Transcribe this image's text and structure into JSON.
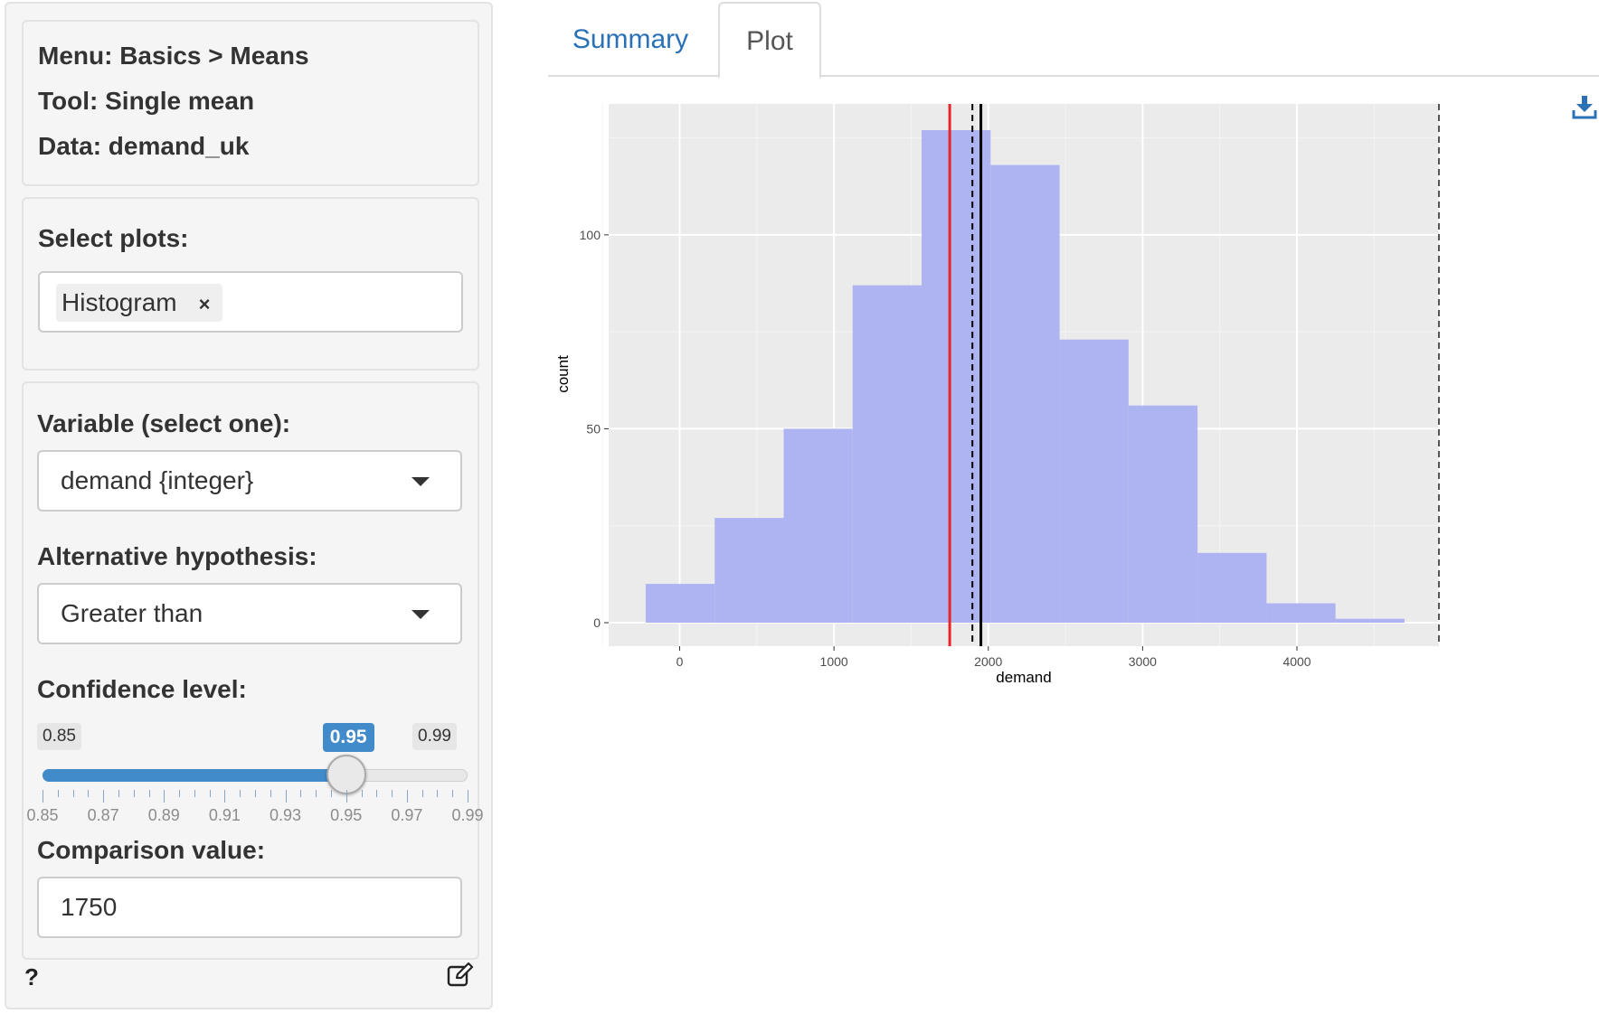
{
  "sidebar": {
    "info": {
      "menu": "Menu: Basics > Means",
      "tool": "Tool: Single mean",
      "data": "Data: demand_uk"
    },
    "plots": {
      "label": "Select plots:",
      "selected": "Histogram",
      "remove_glyph": "×"
    },
    "variable": {
      "label": "Variable (select one):",
      "value": "demand {integer}"
    },
    "alternative": {
      "label": "Alternative hypothesis:",
      "value": "Greater than"
    },
    "confidence": {
      "label": "Confidence level:",
      "min_label": "0.85",
      "max_label": "0.99",
      "value_label": "0.95",
      "min": 0.85,
      "max": 0.99,
      "value": 0.95,
      "grid_labels": [
        "0.85",
        "0.87",
        "0.89",
        "0.91",
        "0.93",
        "0.95",
        "0.97",
        "0.99"
      ]
    },
    "comparison": {
      "label": "Comparison value:",
      "value": "1750"
    },
    "footer": {
      "help_glyph": "?",
      "report_icon": "edit-icon"
    }
  },
  "tabs": [
    {
      "label": "Summary",
      "active": false
    },
    {
      "label": "Plot",
      "active": true
    }
  ],
  "download_icon": "download-icon",
  "chart_data": {
    "type": "bar",
    "xlabel": "demand",
    "ylabel": "count",
    "xlim": [
      -460,
      4920
    ],
    "ylim": [
      0,
      127
    ],
    "xticks": [
      0,
      1000,
      2000,
      3000,
      4000
    ],
    "yticks": [
      0,
      50,
      100
    ],
    "grid": true,
    "bin_width": 447,
    "bins": [
      {
        "x0": -220,
        "x1": 227,
        "count": 10
      },
      {
        "x0": 227,
        "x1": 674,
        "count": 27
      },
      {
        "x0": 674,
        "x1": 1121,
        "count": 50
      },
      {
        "x0": 1121,
        "x1": 1568,
        "count": 87
      },
      {
        "x0": 1568,
        "x1": 2015,
        "count": 127
      },
      {
        "x0": 2015,
        "x1": 2462,
        "count": 118
      },
      {
        "x0": 2462,
        "x1": 2909,
        "count": 73
      },
      {
        "x0": 2909,
        "x1": 3356,
        "count": 56
      },
      {
        "x0": 3356,
        "x1": 3803,
        "count": 18
      },
      {
        "x0": 3803,
        "x1": 4250,
        "count": 5
      },
      {
        "x0": 4250,
        "x1": 4697,
        "count": 1
      }
    ],
    "bar_color": "#aeb3f1",
    "reference_lines": [
      {
        "x": 1750,
        "color": "#e8262a",
        "style": "solid"
      },
      {
        "x": 1897,
        "color": "#000000",
        "style": "dashed"
      },
      {
        "x": 1952,
        "color": "#000000",
        "style": "solid"
      },
      {
        "x": 4920,
        "color": "#555555",
        "style": "dashed"
      }
    ]
  }
}
